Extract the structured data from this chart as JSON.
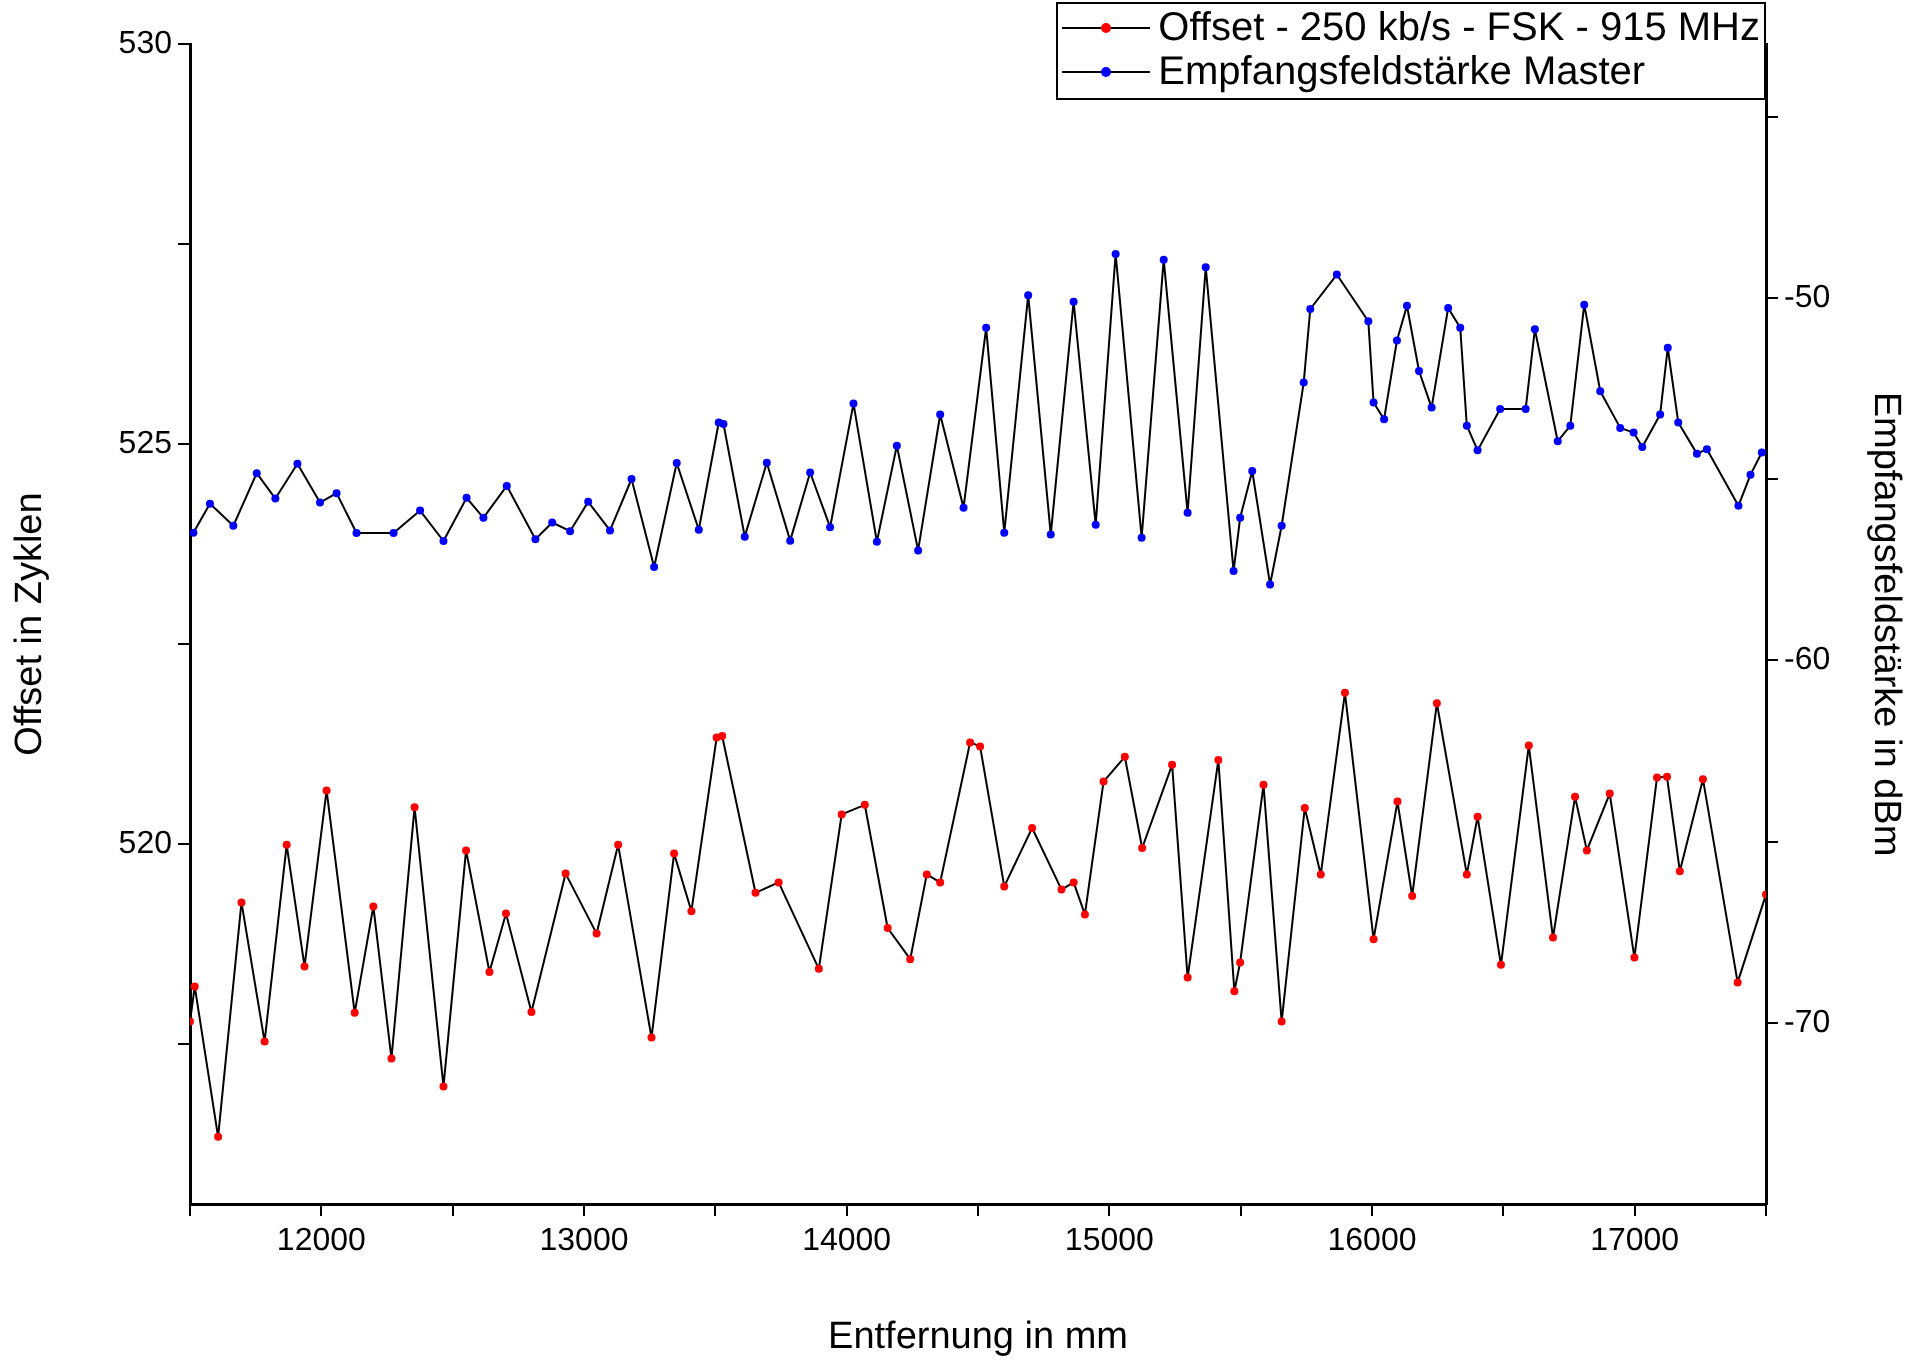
{
  "chart_data": {
    "type": "line",
    "xlabel": "Entfernung in mm",
    "ylabel": "Offset in Zyklen",
    "y2label": "Empfangsfeldstärke in dBm",
    "xlim": [
      11500,
      17500
    ],
    "xticks": [
      {
        "value": 11500,
        "label": null
      },
      12000,
      {
        "value": 12500,
        "label": null
      },
      13000,
      {
        "value": 13500,
        "label": null
      },
      14000,
      {
        "value": 14500,
        "label": null
      },
      15000,
      {
        "value": 15500,
        "label": null
      },
      16000,
      {
        "value": 16500,
        "label": null
      },
      17000,
      {
        "value": 17500,
        "label": null
      }
    ],
    "ylim": [
      515.5,
      530
    ],
    "yticks": [
      {
        "value": 517.5,
        "label": null
      },
      520,
      {
        "value": 522.5,
        "label": null
      },
      525,
      {
        "value": 527.5,
        "label": null
      },
      530
    ],
    "y2lim": [
      -75,
      -43
    ],
    "y2ticks": [
      -70,
      {
        "value": -65,
        "label": null
      },
      -60,
      {
        "value": -55,
        "label": null
      },
      -50,
      {
        "value": -45,
        "label": null
      }
    ],
    "grid": false,
    "legend": "top right",
    "marker": "circle",
    "line_style": "solid",
    "series": [
      {
        "name": "Offset - 250 kb/s - FSK - 915 MHz",
        "color": "#ff0000",
        "x": [
          11500,
          11518,
          11607,
          11696,
          11784,
          11868,
          11936,
          12020,
          12127,
          12198,
          12267,
          12355,
          12465,
          12551,
          12640,
          12703,
          12800,
          12930,
          13048,
          13130,
          13257,
          13343,
          13409,
          13505,
          13526,
          13653,
          13741,
          13894,
          13981,
          14069,
          14156,
          14242,
          14305,
          14356,
          14470,
          14508,
          14600,
          14706,
          14818,
          14864,
          14907,
          14978,
          15059,
          15125,
          15239,
          15298,
          15415,
          15476,
          15498,
          15587,
          15656,
          15744,
          15805,
          15897,
          16006,
          16097,
          16153,
          16247,
          16361,
          16402,
          16491,
          16597,
          16689,
          16773,
          16818,
          16905,
          16999,
          17085,
          17123,
          17172,
          17260,
          17392,
          17500
        ],
        "values": [
          517.78,
          518.22,
          516.34,
          519.27,
          517.53,
          519.99,
          518.47,
          520.67,
          517.89,
          519.22,
          517.32,
          520.46,
          516.97,
          519.92,
          518.4,
          519.13,
          517.9,
          519.63,
          518.88,
          519.99,
          517.58,
          519.88,
          519.16,
          521.33,
          521.35,
          519.39,
          519.52,
          518.44,
          520.37,
          520.49,
          518.95,
          518.56,
          519.62,
          519.52,
          521.27,
          521.22,
          519.47,
          520.2,
          519.43,
          519.52,
          519.12,
          520.78,
          521.09,
          519.95,
          520.99,
          518.33,
          521.05,
          518.16,
          518.52,
          520.74,
          517.78,
          520.45,
          519.62,
          521.89,
          518.81,
          520.53,
          519.35,
          521.76,
          519.62,
          520.34,
          518.49,
          521.23,
          518.83,
          520.59,
          519.92,
          520.63,
          518.58,
          520.83,
          520.84,
          519.66,
          520.81,
          518.27,
          519.37
        ]
      },
      {
        "name": "Empfangsfeldstärke Master",
        "color": "#0000ff",
        "axis": "y2",
        "x": [
          11513,
          11576,
          11665,
          11754,
          11825,
          11909,
          11995,
          12058,
          12134,
          12275,
          12376,
          12465,
          12553,
          12617,
          12706,
          12815,
          12879,
          12947,
          13016,
          13099,
          13181,
          13267,
          13353,
          13437,
          13513,
          13531,
          13612,
          13696,
          13785,
          13861,
          13937,
          14026,
          14115,
          14191,
          14272,
          14356,
          14445,
          14531,
          14600,
          14691,
          14777,
          14864,
          14948,
          15024,
          15123,
          15207,
          15298,
          15367,
          15473,
          15498,
          15544,
          15612,
          15656,
          15740,
          15765,
          15866,
          15986,
          16006,
          16046,
          16095,
          16133,
          16179,
          16227,
          16290,
          16336,
          16361,
          16402,
          16488,
          16585,
          16620,
          16707,
          16755,
          16808,
          16869,
          16945,
          16996,
          17029,
          17097,
          17126,
          17166,
          17237,
          17275,
          17395,
          17441,
          17484
        ],
        "values": [
          -56.48,
          -55.68,
          -56.29,
          -54.84,
          -55.54,
          -54.58,
          -55.65,
          -55.39,
          -56.49,
          -56.49,
          -55.87,
          -56.71,
          -55.52,
          -56.07,
          -55.19,
          -56.66,
          -56.2,
          -56.44,
          -55.63,
          -56.42,
          -55.0,
          -57.43,
          -54.56,
          -56.4,
          -53.44,
          -53.48,
          -56.59,
          -54.55,
          -56.7,
          -54.82,
          -56.33,
          -52.92,
          -56.73,
          -54.08,
          -56.97,
          -53.22,
          -55.79,
          -50.83,
          -56.48,
          -49.93,
          -56.53,
          -50.11,
          -56.26,
          -48.79,
          -56.62,
          -48.95,
          -55.93,
          -49.16,
          -57.54,
          -56.07,
          -54.78,
          -57.91,
          -56.29,
          -52.34,
          -50.31,
          -49.36,
          -50.65,
          -52.89,
          -53.35,
          -51.18,
          -50.22,
          -52.02,
          -53.03,
          -50.28,
          -50.83,
          -53.53,
          -54.21,
          -53.07,
          -53.07,
          -50.87,
          -53.96,
          -53.53,
          -50.19,
          -52.58,
          -53.59,
          -53.72,
          -54.12,
          -53.22,
          -51.38,
          -53.44,
          -54.3,
          -54.18,
          -55.74,
          -54.88,
          -54.27
        ]
      }
    ]
  }
}
